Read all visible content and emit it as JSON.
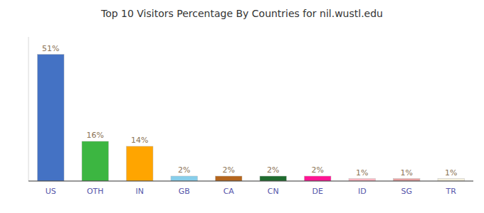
{
  "chart_data": {
    "type": "bar",
    "title": "Top 10 Visitors Percentage By Countries for nil.wustl.edu",
    "categories": [
      "US",
      "OTH",
      "IN",
      "GB",
      "CA",
      "CN",
      "DE",
      "ID",
      "SG",
      "TR"
    ],
    "values": [
      51,
      16,
      14,
      2,
      2,
      2,
      2,
      1,
      1,
      1
    ],
    "value_labels": [
      "51%",
      "16%",
      "14%",
      "2%",
      "2%",
      "2%",
      "2%",
      "1%",
      "1%",
      "1%"
    ],
    "colors": [
      "#4472C4",
      "#3CB641",
      "#FFA500",
      "#87CEEB",
      "#B5651D",
      "#1F6B2E",
      "#FF1493",
      "#FFB6C1",
      "#E8A0A0",
      "#F5F0DC"
    ],
    "ylim": [
      0,
      58
    ],
    "yticks": [],
    "data_labels": true,
    "tick_labels": "x",
    "grid": false
  }
}
